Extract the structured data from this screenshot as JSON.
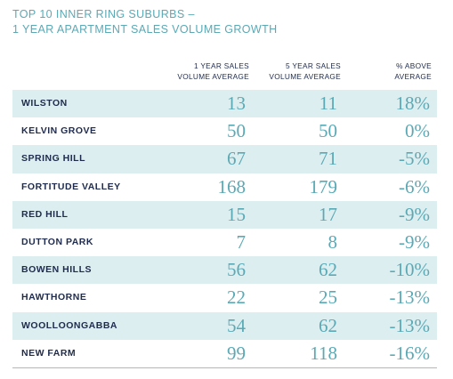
{
  "title": {
    "line1": "TOP 10 INNER RING SUBURBS –",
    "line2": "1 YEAR APARTMENT SALES VOLUME GROWTH"
  },
  "columns": [
    {
      "line1": "1 YEAR SALES",
      "line2": "VOLUME AVERAGE"
    },
    {
      "line1": "5 YEAR SALES",
      "line2": "VOLUME AVERAGE"
    },
    {
      "line1": "% ABOVE",
      "line2": "AVERAGE"
    }
  ],
  "rows": [
    {
      "suburb": "WILSTON",
      "one_year": "13",
      "five_year": "11",
      "pct": "18%"
    },
    {
      "suburb": "KELVIN GROVE",
      "one_year": "50",
      "five_year": "50",
      "pct": "0%"
    },
    {
      "suburb": "SPRING HILL",
      "one_year": "67",
      "five_year": "71",
      "pct": "-5%"
    },
    {
      "suburb": "FORTITUDE VALLEY",
      "one_year": "168",
      "five_year": "179",
      "pct": "-6%"
    },
    {
      "suburb": "RED HILL",
      "one_year": "15",
      "five_year": "17",
      "pct": "-9%"
    },
    {
      "suburb": "DUTTON PARK",
      "one_year": "7",
      "five_year": "8",
      "pct": "-9%"
    },
    {
      "suburb": "BOWEN HILLS",
      "one_year": "56",
      "five_year": "62",
      "pct": "-10%"
    },
    {
      "suburb": "HAWTHORNE",
      "one_year": "22",
      "five_year": "25",
      "pct": "-13%"
    },
    {
      "suburb": "WOOLLOONGABBA",
      "one_year": "54",
      "five_year": "62",
      "pct": "-13%"
    },
    {
      "suburb": "NEW FARM",
      "one_year": "99",
      "five_year": "118",
      "pct": "-16%"
    }
  ],
  "colors": {
    "accent": "#5aa9b5",
    "row_shade": "#ddeef0",
    "text_dark": "#1f2b4d"
  }
}
